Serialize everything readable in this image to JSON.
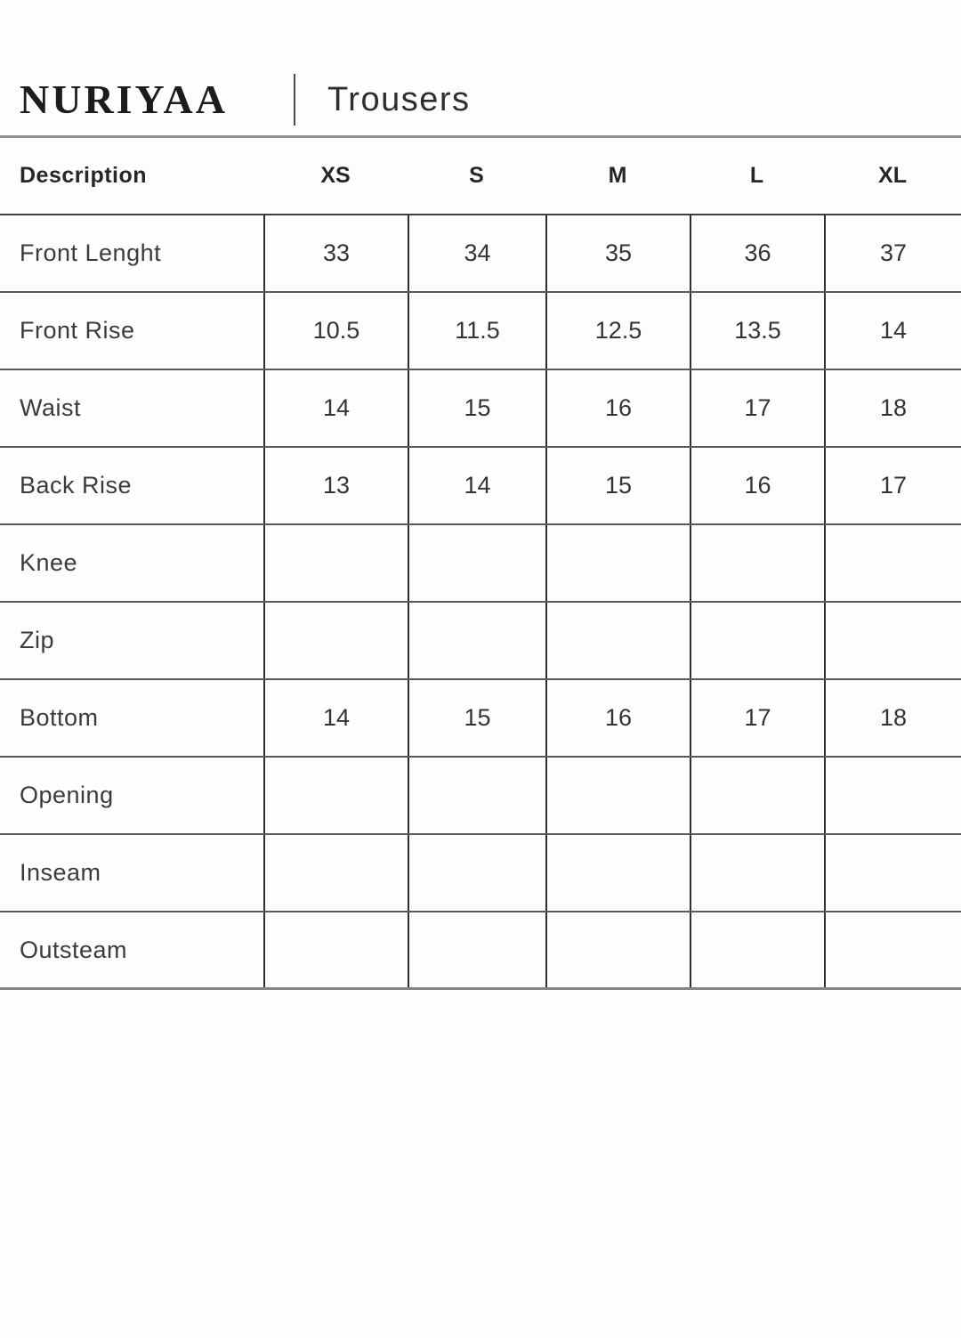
{
  "header": {
    "brand": "NURIYAA",
    "category": "Trousers"
  },
  "table": {
    "columns": [
      "Description",
      "XS",
      "S",
      "M",
      "L",
      "XL"
    ],
    "rows": [
      {
        "label": "Front Lenght",
        "values": [
          "33",
          "34",
          "35",
          "36",
          "37"
        ]
      },
      {
        "label": "Front Rise",
        "values": [
          "10.5",
          "11.5",
          "12.5",
          "13.5",
          "14"
        ]
      },
      {
        "label": "Waist",
        "values": [
          "14",
          "15",
          "16",
          "17",
          "18"
        ]
      },
      {
        "label": "Back Rise",
        "values": [
          "13",
          "14",
          "15",
          "16",
          "17"
        ]
      },
      {
        "label": "Knee",
        "values": [
          "",
          "",
          "",
          "",
          ""
        ]
      },
      {
        "label": "Zip",
        "values": [
          "",
          "",
          "",
          "",
          ""
        ]
      },
      {
        "label": "Bottom",
        "values": [
          "14",
          "15",
          "16",
          "17",
          "18"
        ]
      },
      {
        "label": "Opening",
        "values": [
          "",
          "",
          "",
          "",
          ""
        ]
      },
      {
        "label": "Inseam",
        "values": [
          "",
          "",
          "",
          "",
          ""
        ]
      },
      {
        "label": "Outsteam",
        "values": [
          "",
          "",
          "",
          "",
          ""
        ]
      }
    ]
  },
  "colors": {
    "brand_text": "#1c1c1c",
    "body_text": "#3a3a3a",
    "grid_dark": "#2e2e2e",
    "grid_row_line": "#585858",
    "header_rule": "#8f8f8f"
  }
}
